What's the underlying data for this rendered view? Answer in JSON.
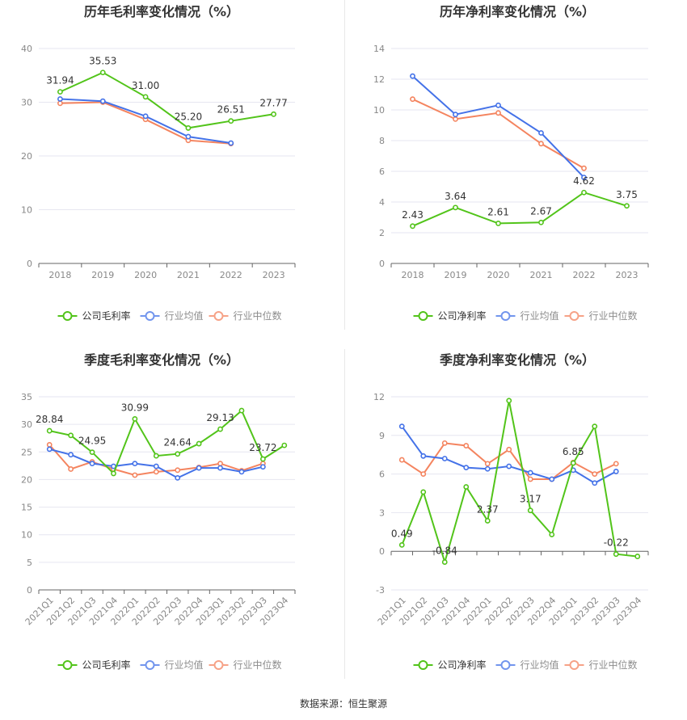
{
  "source_text": "数据来源：恒生聚源",
  "colors": {
    "company": "#52c41a",
    "industry_avg": "#4472e8",
    "industry_median": "#f4845f",
    "grid": "#e6e6f0",
    "axis": "#888888",
    "title": "#333333"
  },
  "chart_data": [
    {
      "type": "line",
      "title": "历年毛利率变化情况（%）",
      "categories": [
        "2018",
        "2019",
        "2020",
        "2021",
        "2022",
        "2023"
      ],
      "ylim": [
        0,
        40
      ],
      "yticks": [
        0,
        10,
        20,
        30,
        40
      ],
      "grid": true,
      "legend_position": "bottom",
      "series": [
        {
          "name": "公司毛利率",
          "role": "company",
          "values": [
            31.94,
            35.53,
            31.0,
            25.2,
            26.51,
            27.77
          ],
          "labels": [
            "31.94",
            "35.53",
            "31.00",
            "25.20",
            "26.51",
            "27.77"
          ]
        },
        {
          "name": "行业均值",
          "role": "industry_avg",
          "values": [
            30.6,
            30.2,
            27.4,
            23.6,
            22.4,
            null
          ]
        },
        {
          "name": "行业中位数",
          "role": "industry_median",
          "values": [
            29.8,
            30.0,
            26.8,
            22.9,
            22.3,
            null
          ]
        }
      ]
    },
    {
      "type": "line",
      "title": "历年净利率变化情况（%）",
      "categories": [
        "2018",
        "2019",
        "2020",
        "2021",
        "2022",
        "2023"
      ],
      "ylim": [
        0,
        14
      ],
      "yticks": [
        0,
        2,
        4,
        6,
        8,
        10,
        12,
        14
      ],
      "grid": true,
      "legend_position": "bottom",
      "series": [
        {
          "name": "公司净利率",
          "role": "company",
          "values": [
            2.43,
            3.64,
            2.61,
            2.67,
            4.62,
            3.75
          ],
          "labels": [
            "2.43",
            "3.64",
            "2.61",
            "2.67",
            "4.62",
            "3.75"
          ]
        },
        {
          "name": "行业均值",
          "role": "industry_avg",
          "values": [
            12.2,
            9.7,
            10.3,
            8.5,
            5.6,
            null
          ]
        },
        {
          "name": "行业中位数",
          "role": "industry_median",
          "values": [
            10.7,
            9.4,
            9.8,
            7.8,
            6.2,
            null
          ]
        }
      ]
    },
    {
      "type": "line",
      "title": "季度毛利率变化情况（%）",
      "categories": [
        "2021Q1",
        "2021Q2",
        "2021Q3",
        "2021Q4",
        "2022Q1",
        "2022Q2",
        "2022Q3",
        "2022Q4",
        "2023Q1",
        "2023Q2",
        "2023Q3",
        "2023Q4"
      ],
      "ylim": [
        0,
        35
      ],
      "yticks": [
        0,
        5,
        10,
        15,
        20,
        25,
        30,
        35
      ],
      "grid": true,
      "legend_position": "bottom",
      "series": [
        {
          "name": "公司毛利率",
          "role": "company",
          "values": [
            28.84,
            28.0,
            24.95,
            21.1,
            30.99,
            24.3,
            24.64,
            26.5,
            29.13,
            32.5,
            23.72,
            26.2
          ],
          "labels": [
            "28.84",
            null,
            "24.95",
            null,
            "30.99",
            null,
            "24.64",
            null,
            "29.13",
            null,
            "23.72",
            null
          ]
        },
        {
          "name": "行业均值",
          "role": "industry_avg",
          "values": [
            25.5,
            24.5,
            22.9,
            22.4,
            22.9,
            22.4,
            20.3,
            22.1,
            22.1,
            21.4,
            22.3,
            null
          ]
        },
        {
          "name": "行业中位数",
          "role": "industry_median",
          "values": [
            26.3,
            21.9,
            23.2,
            21.9,
            20.8,
            21.4,
            21.7,
            22.2,
            22.9,
            21.6,
            22.9,
            null
          ]
        }
      ]
    },
    {
      "type": "line",
      "title": "季度净利率变化情况（%）",
      "categories": [
        "2021Q1",
        "2021Q2",
        "2021Q3",
        "2021Q4",
        "2022Q1",
        "2022Q2",
        "2022Q3",
        "2022Q4",
        "2023Q1",
        "2023Q2",
        "2023Q3",
        "2023Q4"
      ],
      "ylim": [
        -3,
        12
      ],
      "yticks": [
        -3,
        0,
        3,
        6,
        9,
        12
      ],
      "grid": true,
      "legend_position": "bottom",
      "series": [
        {
          "name": "公司净利率",
          "role": "company",
          "values": [
            0.49,
            4.6,
            -0.84,
            5.0,
            2.37,
            11.7,
            3.17,
            1.3,
            6.85,
            9.7,
            -0.22,
            -0.4
          ],
          "labels": [
            "0.49",
            null,
            "-0.84",
            null,
            "2.37",
            null,
            "3.17",
            null,
            "6.85",
            null,
            "-0.22",
            null
          ]
        },
        {
          "name": "行业均值",
          "role": "industry_avg",
          "values": [
            9.7,
            7.4,
            7.2,
            6.5,
            6.4,
            6.6,
            6.1,
            5.6,
            6.3,
            5.3,
            6.2,
            null
          ]
        },
        {
          "name": "行业中位数",
          "role": "industry_median",
          "values": [
            7.1,
            6.0,
            8.4,
            8.2,
            6.8,
            7.9,
            5.6,
            5.6,
            6.9,
            6.0,
            6.8,
            null
          ]
        }
      ]
    }
  ]
}
